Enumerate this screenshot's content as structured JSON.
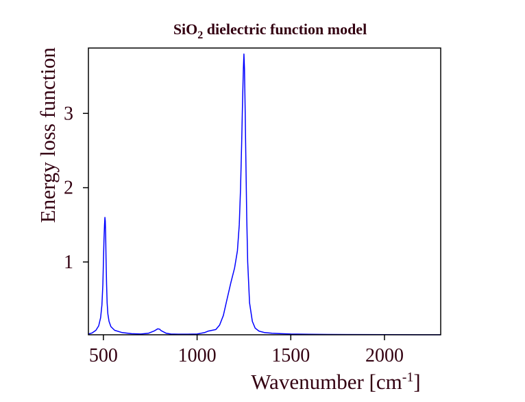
{
  "chart_data": {
    "type": "line",
    "title": {
      "prefix": "SiO",
      "subscript": "2",
      "suffix": " dielectric function model"
    },
    "xlabel": {
      "prefix": "Wavenumber [cm",
      "superscript": "-1",
      "suffix": "]"
    },
    "ylabel": "Energy loss function",
    "xlim": [
      420,
      2300
    ],
    "ylim": [
      0.02,
      3.88
    ],
    "x_ticks": [
      500,
      1000,
      1500,
      2000
    ],
    "x_tick_labels": [
      "500",
      "1000",
      "1500",
      "2000"
    ],
    "y_ticks": [
      1,
      2,
      3
    ],
    "y_tick_labels": [
      "1",
      "2",
      "3"
    ],
    "grid": false,
    "legend": "none",
    "series": [
      {
        "color": "#0000ff",
        "x": [
          420,
          440,
          460,
          475,
          485,
          492,
          497,
          500,
          503,
          506,
          508,
          510,
          512,
          514,
          517,
          520,
          524,
          530,
          540,
          560,
          600,
          650,
          700,
          740,
          770,
          790,
          800,
          806,
          812,
          820,
          835,
          860,
          900,
          950,
          1000,
          1020,
          1040,
          1060,
          1080,
          1100,
          1120,
          1140,
          1160,
          1180,
          1200,
          1215,
          1225,
          1232,
          1238,
          1243,
          1247,
          1250,
          1253,
          1256,
          1260,
          1265,
          1270,
          1280,
          1295,
          1310,
          1330,
          1360,
          1400,
          1450,
          1500,
          1600,
          1700,
          1800,
          2000,
          2200,
          2300
        ],
        "y": [
          0.03,
          0.045,
          0.08,
          0.14,
          0.25,
          0.42,
          0.7,
          1.0,
          1.3,
          1.5,
          1.6,
          1.55,
          1.35,
          1.05,
          0.7,
          0.45,
          0.3,
          0.2,
          0.13,
          0.08,
          0.05,
          0.035,
          0.03,
          0.04,
          0.07,
          0.1,
          0.095,
          0.08,
          0.07,
          0.06,
          0.04,
          0.03,
          0.028,
          0.028,
          0.03,
          0.04,
          0.05,
          0.07,
          0.08,
          0.09,
          0.15,
          0.28,
          0.5,
          0.72,
          0.92,
          1.15,
          1.5,
          2.0,
          2.6,
          3.2,
          3.6,
          3.8,
          3.6,
          3.1,
          2.4,
          1.6,
          1.0,
          0.45,
          0.2,
          0.11,
          0.07,
          0.05,
          0.04,
          0.035,
          0.03,
          0.027,
          0.025,
          0.024,
          0.022,
          0.02,
          0.02
        ]
      }
    ],
    "colors": {
      "line": "#0000ff",
      "text": "#330011",
      "axes": "#000000",
      "background": "#ffffff"
    }
  }
}
